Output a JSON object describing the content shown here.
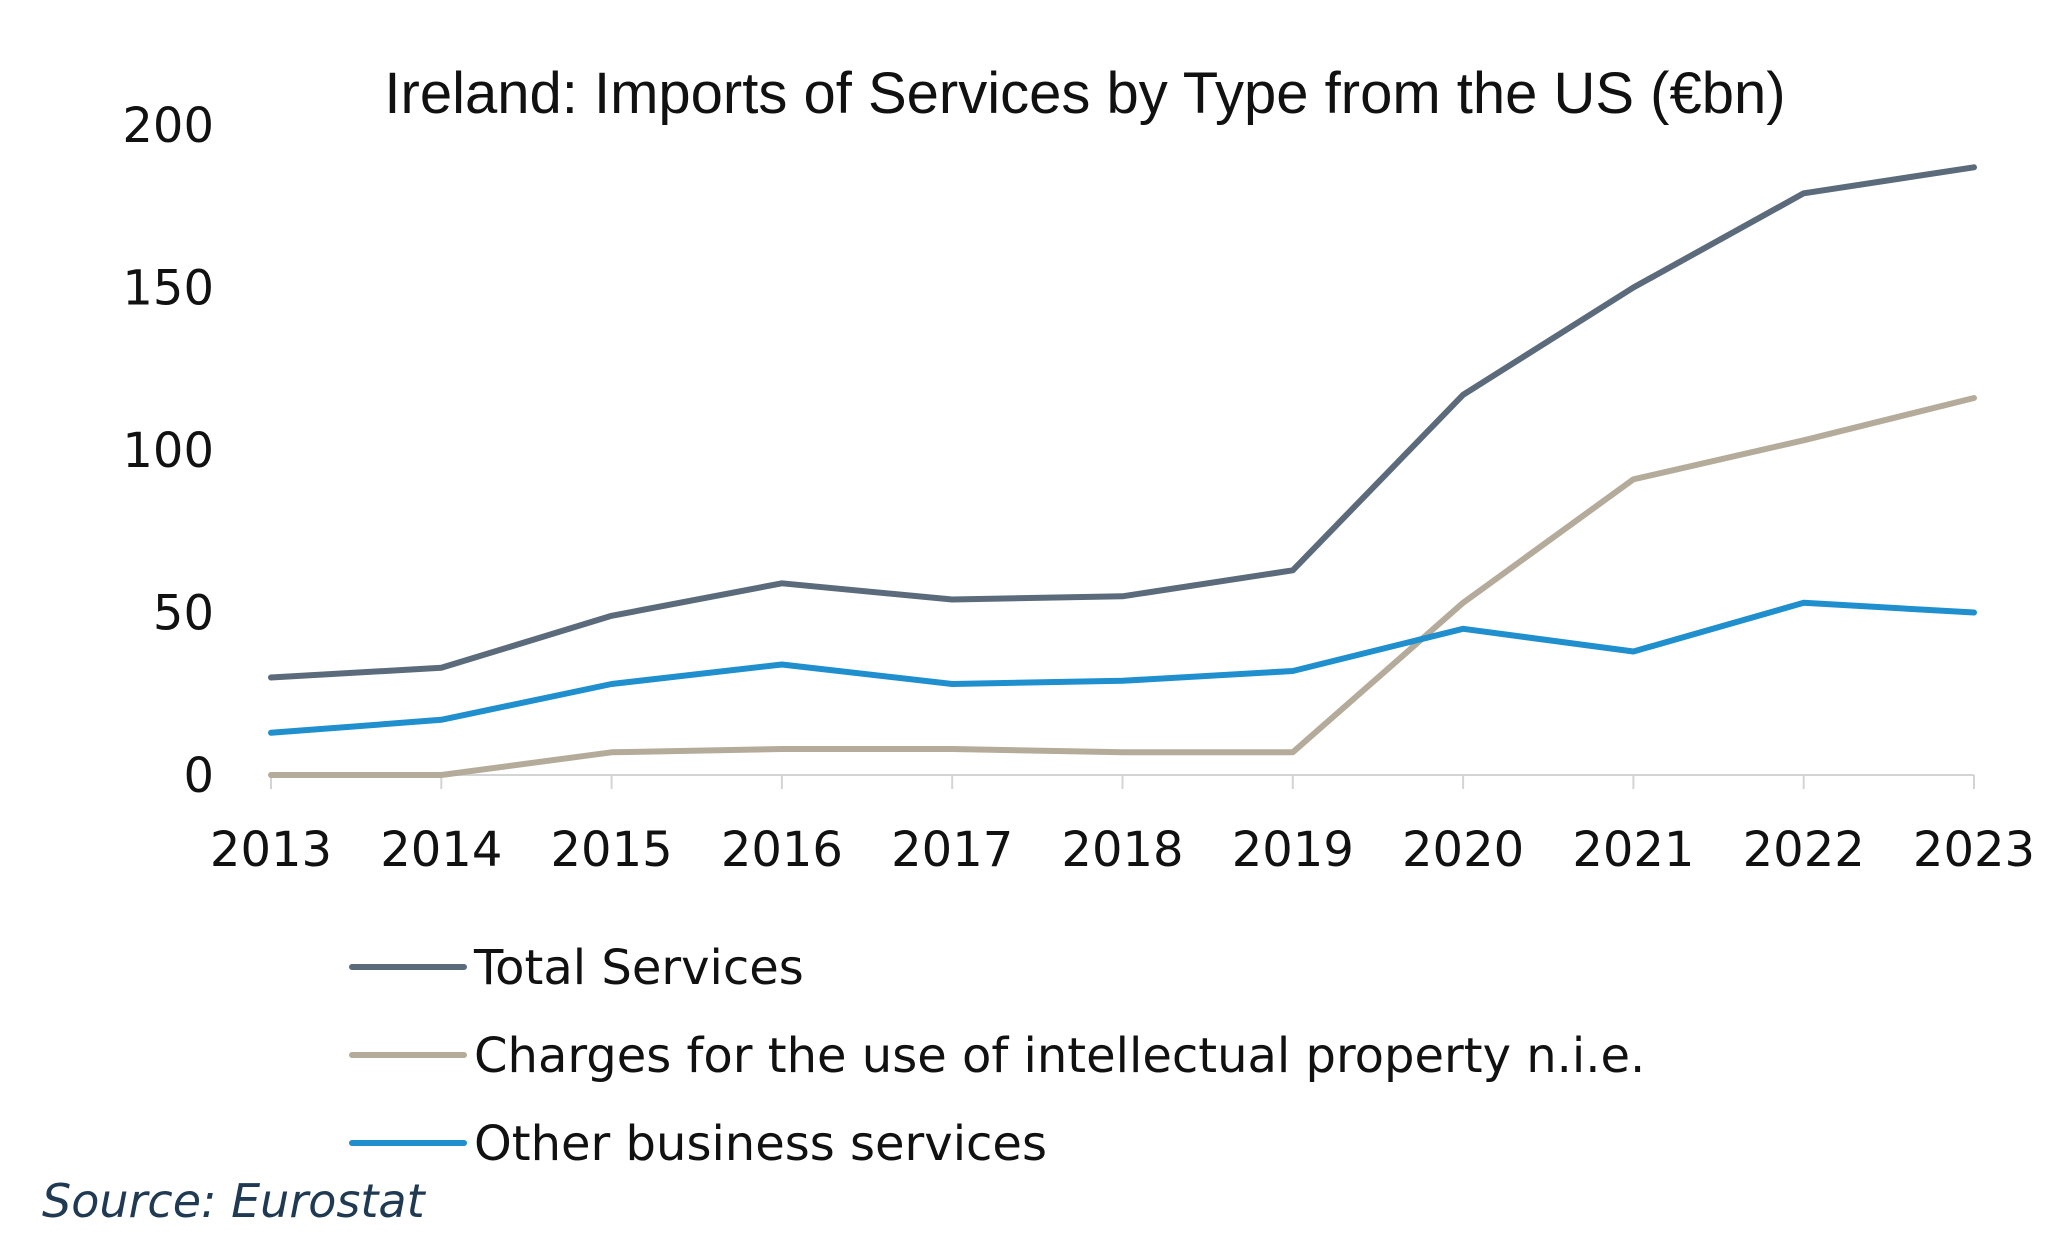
{
  "chart_data": {
    "type": "line",
    "title": "Ireland: Imports of Services by Type from the US (€bn)",
    "xlabel": "",
    "ylabel": "",
    "ylim": [
      0,
      200
    ],
    "yticks": [
      0,
      50,
      100,
      150,
      200
    ],
    "grid": false,
    "legend_position": "bottom",
    "categories": [
      "2013",
      "2014",
      "2015",
      "2016",
      "2017",
      "2018",
      "2019",
      "2020",
      "2021",
      "2022",
      "2023"
    ],
    "series": [
      {
        "name": "Total Services",
        "color": "#5b6b7b",
        "values": [
          30,
          33,
          49,
          59,
          54,
          55,
          63,
          117,
          150,
          179,
          187
        ]
      },
      {
        "name": "Charges for the use of intellectual property n.i.e.",
        "color": "#b5ab9b",
        "values": [
          0,
          0,
          7,
          8,
          8,
          7,
          7,
          53,
          91,
          103,
          116
        ]
      },
      {
        "name": "Other business services",
        "color": "#1f8fce",
        "values": [
          13,
          17,
          28,
          34,
          28,
          29,
          32,
          45,
          38,
          53,
          50
        ]
      }
    ],
    "source": "Source: Eurostat"
  }
}
